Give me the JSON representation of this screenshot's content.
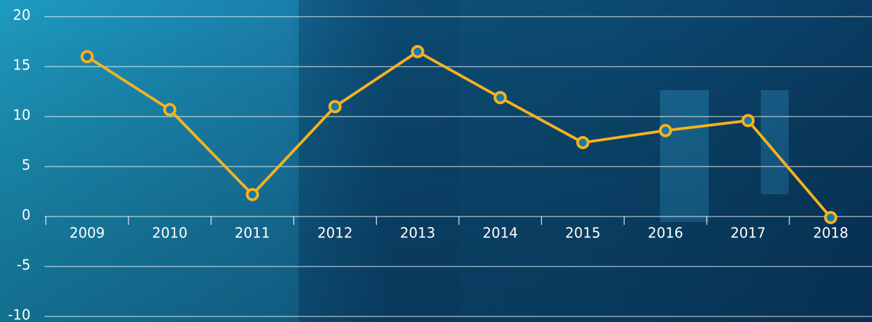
{
  "chart_data": {
    "type": "line",
    "categories": [
      "2009",
      "2010",
      "2011",
      "2012",
      "2013",
      "2014",
      "2015",
      "2016",
      "2017",
      "2018"
    ],
    "series": [
      {
        "color": "#f5b21f",
        "values": [
          16.0,
          10.7,
          2.2,
          11.0,
          16.5,
          11.9,
          7.4,
          8.6,
          9.6,
          -0.1
        ]
      }
    ],
    "ylim": [
      -10,
      20
    ],
    "yticks": [
      -10,
      -5,
      0,
      5,
      10,
      15,
      20
    ],
    "grid": true
  }
}
